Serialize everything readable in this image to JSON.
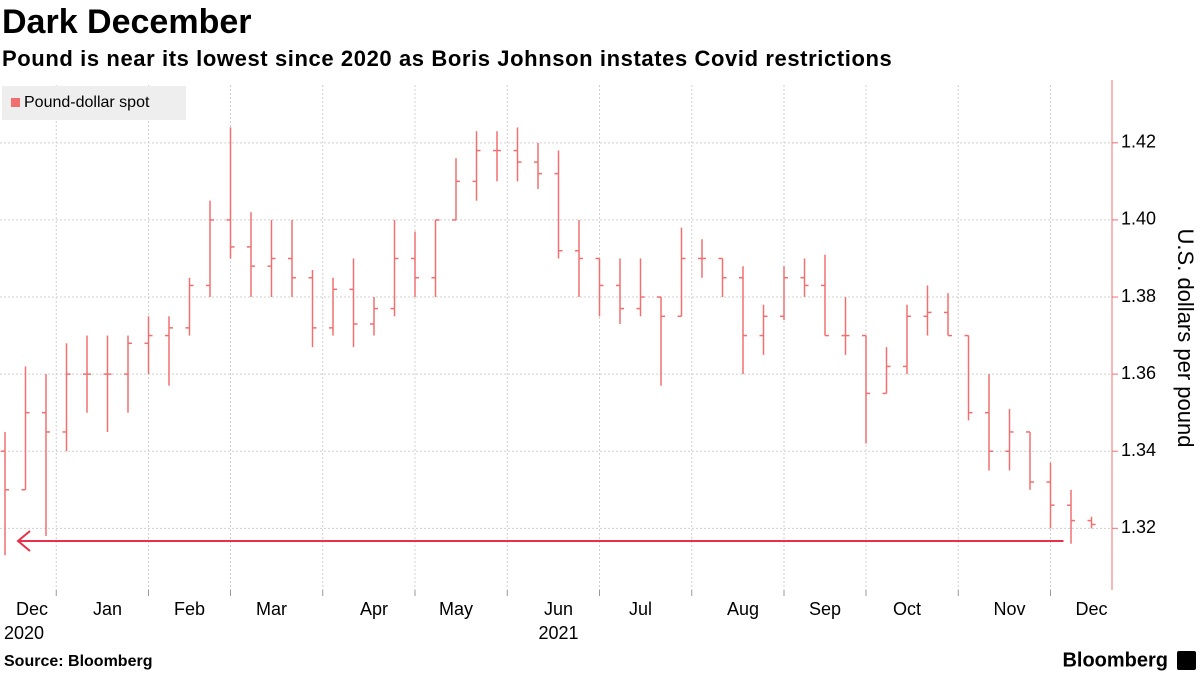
{
  "chart_data": {
    "type": "ohlc",
    "title": "Dark December",
    "subtitle": "Pound is near its lowest since 2020 as Boris Johnson instates Covid restrictions",
    "y_label": "U.S. dollars per pound",
    "source": "Source: Bloomberg",
    "brand": "Bloomberg",
    "grid": true,
    "legend": "top-left",
    "categories": [
      "Dec",
      null,
      null,
      null,
      null,
      "Jan",
      null,
      null,
      null,
      "Feb",
      null,
      null,
      null,
      "Mar",
      null,
      null,
      null,
      null,
      "Apr",
      null,
      null,
      null,
      "May",
      null,
      null,
      null,
      null,
      "Jun",
      null,
      null,
      null,
      "Jul",
      null,
      null,
      null,
      null,
      "Aug",
      null,
      null,
      null,
      "Sep",
      null,
      null,
      null,
      "Oct",
      null,
      null,
      null,
      null,
      "Nov",
      null,
      null,
      null,
      "Dec"
    ],
    "years": [
      "2020",
      null,
      null,
      null,
      null,
      null,
      null,
      null,
      null,
      null,
      null,
      null,
      null,
      null,
      null,
      null,
      null,
      null,
      null,
      null,
      null,
      null,
      null,
      null,
      null,
      null,
      null,
      "2021",
      null,
      null,
      null,
      null,
      null,
      null,
      null,
      null,
      null,
      null,
      null,
      null,
      null,
      null,
      null,
      null,
      null,
      null,
      null,
      null,
      null,
      null,
      null,
      null,
      null,
      null
    ],
    "series": [
      {
        "name": "Pound-dollar spot",
        "color": "#f07070",
        "open": [
          1.34,
          1.33,
          1.35,
          1.345,
          1.36,
          1.36,
          1.36,
          1.368,
          1.37,
          1.372,
          1.383,
          1.4,
          1.393,
          1.388,
          1.39,
          1.385,
          1.372,
          1.382,
          1.373,
          1.377,
          1.39,
          1.385,
          1.4,
          1.41,
          1.418,
          1.418,
          1.415,
          1.412,
          1.392,
          1.39,
          1.383,
          1.377,
          1.38,
          1.375,
          1.39,
          1.39,
          1.385,
          1.37,
          1.375,
          1.385,
          1.383,
          1.37,
          1.37,
          1.355,
          1.362,
          1.375,
          1.376,
          1.37,
          1.35,
          1.34,
          1.345,
          1.332,
          1.326,
          1.322
        ],
        "high": [
          1.345,
          1.362,
          1.36,
          1.368,
          1.37,
          1.37,
          1.37,
          1.375,
          1.375,
          1.385,
          1.405,
          1.424,
          1.402,
          1.4,
          1.4,
          1.387,
          1.385,
          1.39,
          1.38,
          1.4,
          1.397,
          1.4,
          1.416,
          1.423,
          1.423,
          1.424,
          1.42,
          1.418,
          1.4,
          1.39,
          1.39,
          1.39,
          1.38,
          1.398,
          1.395,
          1.39,
          1.388,
          1.378,
          1.388,
          1.39,
          1.391,
          1.38,
          1.37,
          1.367,
          1.378,
          1.383,
          1.381,
          1.37,
          1.36,
          1.351,
          1.345,
          1.337,
          1.33,
          1.323
        ],
        "low": [
          1.313,
          1.33,
          1.318,
          1.34,
          1.35,
          1.345,
          1.35,
          1.36,
          1.357,
          1.37,
          1.38,
          1.39,
          1.38,
          1.38,
          1.38,
          1.367,
          1.37,
          1.367,
          1.37,
          1.375,
          1.38,
          1.38,
          1.4,
          1.405,
          1.41,
          1.41,
          1.408,
          1.39,
          1.38,
          1.375,
          1.373,
          1.375,
          1.357,
          1.375,
          1.385,
          1.38,
          1.36,
          1.365,
          1.374,
          1.38,
          1.37,
          1.365,
          1.342,
          1.355,
          1.36,
          1.37,
          1.37,
          1.348,
          1.335,
          1.335,
          1.33,
          1.32,
          1.316,
          1.32
        ],
        "close": [
          1.33,
          1.35,
          1.345,
          1.36,
          1.36,
          1.36,
          1.368,
          1.37,
          1.372,
          1.383,
          1.4,
          1.393,
          1.388,
          1.39,
          1.385,
          1.372,
          1.382,
          1.373,
          1.377,
          1.39,
          1.385,
          1.4,
          1.41,
          1.418,
          1.418,
          1.415,
          1.412,
          1.392,
          1.39,
          1.383,
          1.377,
          1.38,
          1.375,
          1.39,
          1.39,
          1.385,
          1.37,
          1.375,
          1.385,
          1.383,
          1.37,
          1.37,
          1.355,
          1.362,
          1.375,
          1.376,
          1.37,
          1.35,
          1.34,
          1.345,
          1.332,
          1.326,
          1.322,
          1.321
        ]
      }
    ],
    "arrow_level": 1.3167,
    "arrow_color": "#e8304a",
    "ylim": [
      1.304,
      1.435
    ],
    "yticks": [
      1.32,
      1.34,
      1.36,
      1.38,
      {
        "value": 1.4,
        "label": "1.40"
      },
      1.42
    ]
  }
}
